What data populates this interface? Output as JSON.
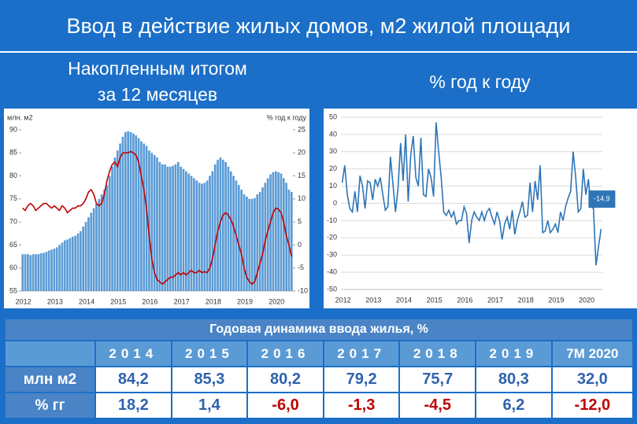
{
  "header": {
    "title": "Ввод в действие жилых домов, м2 жилой площади",
    "left_title": [
      "Накопленным итогом",
      "за 12 месяцев"
    ],
    "right_title": "% год к году"
  },
  "chart_data": [
    {
      "type": "bar",
      "ylabel": "млн. м2",
      "y2label": "% год к году",
      "categories": [
        "2012",
        null,
        null,
        null,
        null,
        null,
        null,
        null,
        null,
        null,
        null,
        null,
        "2013",
        null,
        null,
        null,
        null,
        null,
        null,
        null,
        null,
        null,
        null,
        null,
        "2014",
        null,
        null,
        null,
        null,
        null,
        null,
        null,
        null,
        null,
        null,
        null,
        "2015",
        null,
        null,
        null,
        null,
        null,
        null,
        null,
        null,
        null,
        null,
        null,
        "2016",
        null,
        null,
        null,
        null,
        null,
        null,
        null,
        null,
        null,
        null,
        null,
        "2017",
        null,
        null,
        null,
        null,
        null,
        null,
        null,
        null,
        null,
        null,
        null,
        "2018",
        null,
        null,
        null,
        null,
        null,
        null,
        null,
        null,
        null,
        null,
        null,
        "2019",
        null,
        null,
        null,
        null,
        null,
        null,
        null,
        null,
        null,
        null,
        null,
        "2020",
        null,
        null,
        null,
        null,
        null,
        null
      ],
      "ylim": [
        55,
        90
      ],
      "yticks": [
        90,
        85,
        80,
        75,
        70,
        65,
        60,
        55
      ],
      "y2lim": [
        -10,
        25
      ],
      "y2ticks": [
        25,
        20,
        15,
        10,
        5,
        0,
        -5,
        -10
      ],
      "grid": false,
      "series": [
        {
          "type": "bar",
          "color": "#5b9bd5",
          "values": [
            63,
            63,
            63,
            62.8,
            63,
            63,
            63,
            63.2,
            63.3,
            63.5,
            63.8,
            64,
            64.2,
            64.5,
            65,
            65.5,
            66,
            66.2,
            66.5,
            66.8,
            67,
            67.5,
            68,
            69,
            70,
            71,
            72,
            73,
            74,
            75,
            76,
            77,
            78,
            80,
            82,
            84,
            85.5,
            87,
            88.5,
            89.5,
            89.7,
            89.5,
            89.2,
            88.8,
            88.2,
            87.5,
            87,
            86.5,
            85.5,
            85,
            84.5,
            84,
            83,
            82.5,
            82.5,
            82,
            82,
            82.2,
            82.5,
            83,
            82,
            81.5,
            81,
            80.5,
            80,
            79.5,
            79,
            78.5,
            78.3,
            78.5,
            79,
            80,
            81,
            82.5,
            83.5,
            84,
            83.5,
            83,
            82,
            81,
            80,
            79,
            78,
            77,
            76,
            75.5,
            75,
            75,
            75.2,
            76,
            76.5,
            77.5,
            78.5,
            79.5,
            80.3,
            80.8,
            81,
            80.8,
            80.5,
            79.5,
            78.5,
            77,
            76.5
          ]
        },
        {
          "type": "line",
          "axis": "y2",
          "color": "#c00000",
          "values": [
            8,
            7.5,
            8.5,
            9,
            8.5,
            7.5,
            8,
            8.5,
            9,
            9,
            8.5,
            8,
            8.5,
            8,
            7.5,
            8.5,
            8,
            7,
            7.5,
            8,
            8,
            8.5,
            8.5,
            9,
            10,
            11.5,
            12,
            11,
            9,
            8.5,
            9,
            11,
            14,
            16,
            17.5,
            18,
            17,
            19,
            20,
            20,
            20,
            20.3,
            20,
            19.5,
            18,
            15,
            12,
            8,
            2,
            -3,
            -6,
            -7.5,
            -8,
            -8.5,
            -8,
            -7.5,
            -7,
            -7,
            -6.5,
            -6,
            -6.5,
            -6,
            -6.5,
            -6,
            -5.5,
            -6,
            -6,
            -5.5,
            -6,
            -5.8,
            -6,
            -5,
            -3,
            0,
            3,
            5,
            6.5,
            7,
            6.5,
            5.5,
            4,
            2,
            0,
            -2,
            -5,
            -7,
            -8,
            -8.5,
            -8,
            -6,
            -4,
            -2,
            1,
            3,
            5,
            7,
            8,
            7.8,
            7,
            5,
            2,
            0,
            -2.5
          ]
        }
      ]
    },
    {
      "type": "line",
      "categories": [
        "2012",
        null,
        null,
        null,
        null,
        null,
        null,
        null,
        null,
        null,
        null,
        null,
        "2013",
        null,
        null,
        null,
        null,
        null,
        null,
        null,
        null,
        null,
        null,
        null,
        "2014",
        null,
        null,
        null,
        null,
        null,
        null,
        null,
        null,
        null,
        null,
        null,
        "2015",
        null,
        null,
        null,
        null,
        null,
        null,
        null,
        null,
        null,
        null,
        null,
        "2016",
        null,
        null,
        null,
        null,
        null,
        null,
        null,
        null,
        null,
        null,
        null,
        "2017",
        null,
        null,
        null,
        null,
        null,
        null,
        null,
        null,
        null,
        null,
        null,
        "2018",
        null,
        null,
        null,
        null,
        null,
        null,
        null,
        null,
        null,
        null,
        null,
        "2019",
        null,
        null,
        null,
        null,
        null,
        null,
        null,
        null,
        null,
        null,
        null,
        "2020",
        null,
        null,
        null,
        null,
        null,
        null
      ],
      "ylim": [
        -50,
        50
      ],
      "yticks": [
        50,
        40,
        30,
        20,
        10,
        0,
        -10,
        -20,
        -30,
        -40,
        -50
      ],
      "grid": true,
      "series": [
        {
          "type": "line",
          "color": "#2e75b6",
          "end_label": true,
          "values": [
            12,
            22,
            5,
            -3,
            -5,
            7,
            -5,
            16,
            10,
            -3,
            13,
            12,
            2,
            14,
            10,
            15,
            5,
            -4,
            -2,
            27,
            11,
            -5,
            9,
            35,
            13,
            40,
            1,
            28,
            39,
            15,
            10,
            38,
            5,
            4,
            20,
            15,
            4,
            47,
            30,
            15,
            -5,
            -7,
            -4,
            -8,
            -5,
            -12,
            -10,
            -10,
            -2,
            -6,
            -23,
            -10,
            -5,
            -8,
            -10,
            -5,
            -10,
            -5,
            -3,
            -8,
            -12,
            -5,
            -10,
            -21,
            -12,
            -8,
            -15,
            -4,
            -18,
            -10,
            -5,
            1,
            -8,
            -7,
            12,
            -5,
            13,
            2,
            22,
            -17,
            -16,
            -10,
            -17,
            -15,
            -12,
            -17,
            -5,
            -10,
            -2,
            3,
            7,
            30,
            15,
            -5,
            -3,
            20,
            5,
            14,
            -2,
            -3,
            -36,
            -25,
            -14.9
          ]
        }
      ]
    }
  ],
  "table": {
    "title": "Годовая динамика ввода жилья, %",
    "columns": [
      "2014",
      "2015",
      "2016",
      "2017",
      "2018",
      "2019",
      "7M 2020"
    ],
    "rows": [
      {
        "label": "млн м2",
        "cells": [
          "84,2",
          "85,3",
          "80,2",
          "79,2",
          "75,7",
          "80,3",
          "32,0"
        ],
        "colors": [
          "#2e62ad",
          "#2e62ad",
          "#2e62ad",
          "#2e62ad",
          "#2e62ad",
          "#2e62ad",
          "#2e62ad"
        ]
      },
      {
        "label": "% гг",
        "cells": [
          "18,2",
          "1,4",
          "-6,0",
          "-1,3",
          "-4,5",
          "6,2",
          "-12,0"
        ],
        "colors": [
          "#2e62ad",
          "#2e62ad",
          "#c00000",
          "#c00000",
          "#c00000",
          "#2e62ad",
          "#c00000"
        ]
      }
    ]
  }
}
